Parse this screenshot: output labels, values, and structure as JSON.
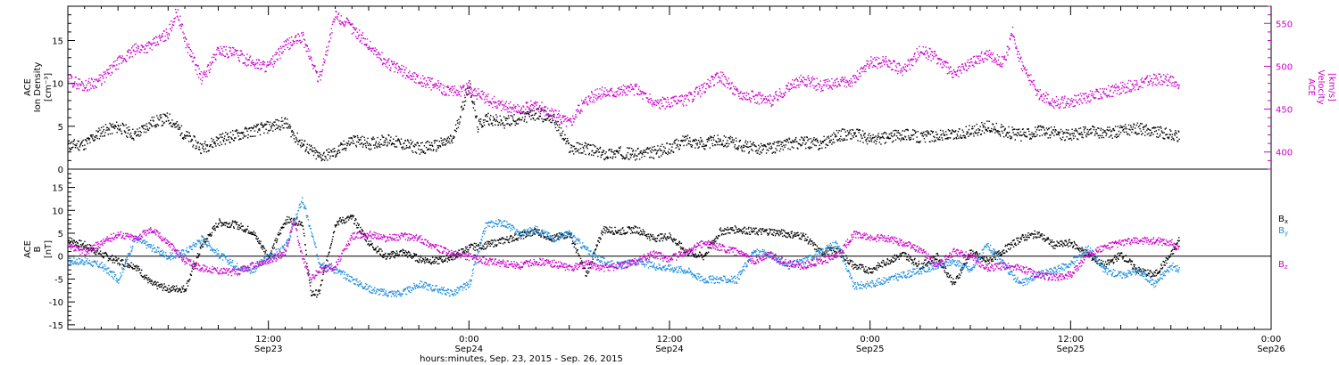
{
  "colors": {
    "density": "#000000",
    "velocity": "#cc00cc",
    "bx": "#000000",
    "by": "#1e8fe0",
    "bz": "#cc00cc",
    "axis": "#000000",
    "zero_line": "#000000"
  },
  "xaxis": {
    "label": "hours:minutes, Sep. 23, 2015 - Sep. 26, 2015",
    "ticks": [
      {
        "hour": 12,
        "time": "12:00",
        "date": "Sep23"
      },
      {
        "hour": 24,
        "time": "0:00",
        "date": "Sep24"
      },
      {
        "hour": 36,
        "time": "12:00",
        "date": "Sep24"
      },
      {
        "hour": 48,
        "time": "0:00",
        "date": "Sep25"
      },
      {
        "hour": 60,
        "time": "12:00",
        "date": "Sep25"
      },
      {
        "hour": 72,
        "time": "0:00",
        "date": "Sep26"
      }
    ]
  },
  "panels": {
    "top_left_label": [
      "ACE",
      "Ion Density",
      "[cm⁻³]"
    ],
    "top_right_label": [
      "ACE",
      "Velocity",
      "[km/s]"
    ],
    "bottom_label": [
      "ACE",
      "B",
      "[nT]"
    ],
    "bottom_legend": [
      {
        "text": "B",
        "sub": "x",
        "key": "bx"
      },
      {
        "text": "B",
        "sub": "y",
        "key": "by"
      },
      {
        "text": "B",
        "sub": "z",
        "key": "bz"
      }
    ]
  },
  "chart_data": [
    {
      "type": "scatter",
      "x_unit": "hours since Sep 23 00:00 UT",
      "xlim": [
        0,
        72
      ],
      "left_axis": {
        "label": "Ion Density [cm^-3]",
        "ylim": [
          0,
          19
        ],
        "ticks": [
          0,
          5,
          10,
          15
        ]
      },
      "right_axis": {
        "label": "Velocity [km/s]",
        "ylim": [
          380,
          570
        ],
        "ticks": [
          400,
          450,
          500,
          550
        ]
      },
      "series": [
        {
          "name": "Ion Density",
          "axis": "left",
          "x": [
            0,
            1,
            2,
            3,
            4,
            5,
            6,
            7,
            8,
            9,
            10,
            11,
            12,
            13,
            13.5,
            14,
            15,
            16,
            17,
            18,
            19,
            20,
            21,
            22,
            23,
            24,
            24.5,
            25,
            26,
            27,
            28,
            29,
            30,
            31,
            32,
            33,
            34,
            35,
            36,
            37,
            38,
            39,
            40,
            41,
            42,
            43,
            44,
            45,
            46,
            47,
            48,
            49,
            50,
            51,
            52,
            53,
            54,
            55,
            56,
            57,
            58,
            59,
            60,
            61,
            62,
            63,
            64,
            65,
            66,
            66.5
          ],
          "y": [
            2.8,
            3.0,
            4.5,
            5.0,
            4.0,
            5.5,
            6.0,
            4.0,
            2.5,
            3.5,
            4.0,
            4.5,
            5.0,
            5.5,
            4.0,
            3.0,
            1.5,
            2.0,
            3.5,
            3.0,
            3.5,
            3.0,
            2.5,
            2.8,
            3.5,
            10.0,
            5.0,
            6.0,
            5.5,
            6.0,
            6.5,
            6.0,
            2.5,
            2.5,
            1.8,
            2.0,
            1.8,
            2.0,
            2.5,
            3.5,
            3.0,
            3.5,
            3.0,
            2.5,
            2.5,
            3.0,
            3.2,
            3.0,
            4.0,
            4.2,
            3.5,
            3.7,
            4.2,
            3.8,
            4.0,
            4.0,
            4.5,
            5.0,
            4.5,
            4.0,
            4.5,
            4.3,
            4.0,
            4.5,
            4.2,
            4.5,
            4.8,
            4.5,
            4.0,
            3.8
          ]
        },
        {
          "name": "Velocity",
          "axis": "right",
          "x": [
            0,
            1,
            2,
            3,
            4,
            5,
            6,
            6.5,
            7,
            8,
            9,
            10,
            11,
            12,
            13,
            14,
            15,
            16,
            17,
            18,
            19,
            20,
            21,
            22,
            23,
            24,
            25,
            26,
            27,
            28,
            29,
            30,
            31,
            32,
            33,
            34,
            35,
            36,
            37,
            38,
            39,
            40,
            41,
            42,
            43,
            44,
            45,
            46,
            47,
            48,
            49,
            50,
            51,
            52,
            53,
            54,
            55,
            56,
            56.5,
            57,
            58,
            59,
            60,
            61,
            62,
            63,
            64,
            65,
            66,
            66.5
          ],
          "y": [
            485,
            478,
            485,
            505,
            520,
            525,
            540,
            565,
            530,
            485,
            520,
            515,
            505,
            500,
            525,
            535,
            485,
            560,
            545,
            525,
            505,
            495,
            485,
            478,
            470,
            475,
            462,
            455,
            450,
            455,
            445,
            435,
            462,
            470,
            472,
            474,
            458,
            458,
            462,
            475,
            490,
            470,
            465,
            460,
            475,
            485,
            478,
            480,
            485,
            505,
            505,
            495,
            520,
            510,
            490,
            505,
            515,
            505,
            540,
            505,
            470,
            458,
            460,
            465,
            470,
            475,
            480,
            485,
            485,
            472
          ]
        }
      ]
    },
    {
      "type": "scatter",
      "x_unit": "hours since Sep 23 00:00 UT",
      "xlim": [
        0,
        72
      ],
      "ylim": [
        -16,
        19
      ],
      "ylabel": "B [nT]",
      "yticks": [
        -15,
        -10,
        -5,
        0,
        5,
        10,
        15
      ],
      "series": [
        {
          "name": "Bx",
          "x": [
            0,
            1,
            2,
            3,
            4,
            5,
            6,
            7,
            8,
            9,
            10,
            11,
            12,
            13,
            14,
            14.5,
            15,
            16,
            17,
            18,
            19,
            20,
            21,
            22,
            23,
            24,
            25,
            26,
            27,
            28,
            29,
            30,
            31,
            32,
            33,
            34,
            35,
            36,
            37,
            38,
            39,
            40,
            41,
            42,
            43,
            44,
            45,
            46,
            47,
            48,
            49,
            50,
            51,
            52,
            53,
            54,
            55,
            56,
            57,
            58,
            59,
            60,
            61,
            62,
            63,
            64,
            65,
            66,
            66.5
          ],
          "y": [
            3.5,
            2.5,
            0.5,
            -1.0,
            -2.0,
            -6.0,
            -7.0,
            -7.0,
            2.5,
            7.5,
            7.0,
            5.5,
            0.0,
            8.0,
            7.5,
            -8.0,
            -8.0,
            7.5,
            8.5,
            3.0,
            0.0,
            1.0,
            -0.5,
            -1.0,
            0.0,
            2.0,
            2.5,
            3.5,
            4.5,
            5.5,
            4.0,
            5.0,
            -4.0,
            6.0,
            5.5,
            6.0,
            4.0,
            4.5,
            1.0,
            0.0,
            5.5,
            6.0,
            5.5,
            5.5,
            5.0,
            4.5,
            1.0,
            1.5,
            -2.0,
            -3.0,
            -1.0,
            0.5,
            -2.0,
            0.0,
            -6.0,
            1.0,
            -1.0,
            1.5,
            4.0,
            5.0,
            2.5,
            3.0,
            0.5,
            -2.0,
            0.5,
            -3.0,
            -4.0,
            0.5,
            4.0
          ]
        },
        {
          "name": "By",
          "x": [
            0,
            1,
            2,
            3,
            4,
            5,
            6,
            7,
            8,
            9,
            10,
            11,
            12,
            13,
            14,
            15,
            16,
            17,
            18,
            19,
            20,
            21,
            22,
            23,
            24,
            25,
            26,
            27,
            28,
            29,
            30,
            31,
            32,
            33,
            34,
            35,
            36,
            37,
            38,
            39,
            40,
            41,
            42,
            43,
            44,
            45,
            46,
            47,
            48,
            49,
            50,
            51,
            52,
            53,
            54,
            55,
            56,
            57,
            58,
            59,
            60,
            61,
            62,
            63,
            64,
            65,
            66,
            66.5
          ],
          "y": [
            -1.0,
            -1.0,
            -2.0,
            -5.0,
            4.0,
            2.0,
            0.0,
            1.0,
            4.0,
            0.5,
            -2.0,
            -3.0,
            0.0,
            2.0,
            12.5,
            -1.0,
            -3.0,
            -5.0,
            -7.0,
            -8.0,
            -8.0,
            -6.0,
            -7.0,
            -8.0,
            -6.0,
            7.0,
            7.5,
            5.0,
            6.0,
            4.0,
            5.0,
            1.5,
            -1.0,
            -2.0,
            -1.0,
            -2.0,
            -2.5,
            -3.0,
            -5.0,
            -5.0,
            -5.0,
            1.0,
            0.5,
            -2.0,
            -1.0,
            1.0,
            3.0,
            -6.5,
            -6.0,
            -5.0,
            -4.0,
            -3.0,
            -2.0,
            -1.0,
            -3.0,
            2.5,
            -2.0,
            -6.0,
            -4.0,
            -3.0,
            -1.5,
            2.0,
            -3.0,
            -4.0,
            -3.0,
            -6.0,
            -2.0,
            -3.0
          ]
        },
        {
          "name": "Bz",
          "x": [
            0,
            1,
            2,
            3,
            4,
            5,
            6,
            7,
            8,
            9,
            10,
            11,
            12,
            13,
            13.5,
            14,
            14.5,
            15,
            16,
            17,
            18,
            19,
            20,
            21,
            22,
            23,
            24,
            25,
            26,
            27,
            28,
            29,
            30,
            31,
            32,
            33,
            34,
            35,
            36,
            37,
            38,
            39,
            40,
            41,
            42,
            43,
            44,
            45,
            46,
            47,
            48,
            49,
            50,
            51,
            52,
            53,
            54,
            55,
            56,
            57,
            58,
            59,
            60,
            61,
            62,
            63,
            64,
            65,
            66,
            66.5
          ],
          "y": [
            2.0,
            1.0,
            3.0,
            5.0,
            4.0,
            6.0,
            3.0,
            -1.0,
            -2.5,
            -3.0,
            -3.5,
            -2.0,
            -1.0,
            1.0,
            8.0,
            0.0,
            -5.0,
            -3.0,
            -2.0,
            4.5,
            5.0,
            4.0,
            4.5,
            4.0,
            2.0,
            0.5,
            0.0,
            -1.0,
            -1.5,
            -2.0,
            -1.0,
            -1.5,
            -2.5,
            -1.5,
            -2.5,
            -2.0,
            -1.0,
            0.5,
            -0.5,
            1.0,
            3.0,
            2.0,
            1.0,
            -1.0,
            0.5,
            -1.5,
            -2.0,
            -1.0,
            0.0,
            5.0,
            4.0,
            4.0,
            3.0,
            1.5,
            -2.0,
            1.0,
            0.0,
            -2.5,
            -2.0,
            -2.5,
            -4.0,
            -4.5,
            -4.0,
            0.5,
            2.0,
            3.0,
            3.5,
            3.5,
            3.0,
            1.5
          ]
        }
      ]
    }
  ]
}
